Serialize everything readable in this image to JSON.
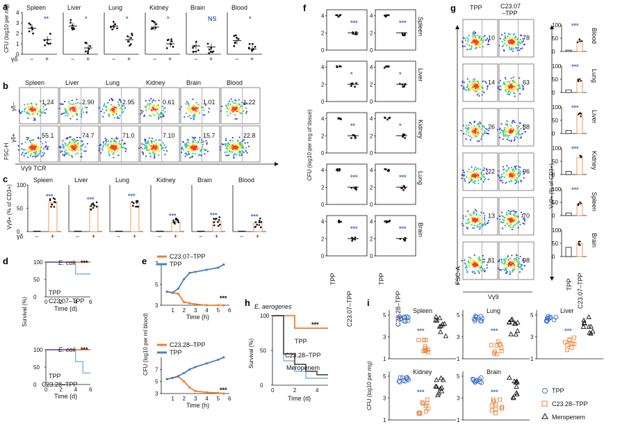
{
  "panels": {
    "a": {
      "label": "a",
      "ylabel": "CFU (log10 per mg)",
      "organs": [
        "Spleen",
        "Liver",
        "Lung",
        "Kidney",
        "Brain",
        "Blood"
      ],
      "gd_label": "γδ",
      "signs": [
        "−",
        "+"
      ],
      "stats": [
        "**",
        "*",
        "*",
        "*",
        "NS",
        "*"
      ],
      "ylim": [
        0,
        4
      ],
      "yticks": [
        "0",
        "1",
        "2",
        "3",
        "4"
      ],
      "chart_data": {
        "type": "scatter",
        "categories": [
          "Spleen",
          "Liver",
          "Lung",
          "Kidney",
          "Brain",
          "Blood"
        ],
        "series": [
          {
            "name": "−",
            "values": [
              2.5,
              2.7,
              2.7,
              2.6,
              0.8,
              1.3
            ]
          },
          {
            "name": "+",
            "values": [
              1.4,
              0.6,
              1.4,
              1.0,
              0.7,
              0.5
            ]
          }
        ]
      }
    },
    "b": {
      "label": "b",
      "organs": [
        "Spleen",
        "Liver",
        "Lung",
        "Kidney",
        "Brain",
        "Blood"
      ],
      "row1_label": "γδ−",
      "row2_label": "γδ+",
      "ylabel": "FSC-H",
      "xlabel": "Vγ9 TCR",
      "row1_values": [
        "1.24",
        "2.90",
        "2.95",
        "0.61",
        "1.01",
        "1.22"
      ],
      "row2_values": [
        "55.1",
        "74.7",
        "71.0",
        "7.10",
        "15.7",
        "22.8"
      ]
    },
    "c": {
      "label": "c",
      "ylabel": "Vγ9+ (% of CD3+)",
      "organs": [
        "Spleen",
        "Liver",
        "Lung",
        "Kidney",
        "Brain",
        "Blood"
      ],
      "gd_label": "γδ",
      "signs": [
        "−",
        "+"
      ],
      "stat": "***",
      "yticks": [
        "0",
        "50",
        "100"
      ],
      "chart_data": {
        "type": "bar",
        "categories": [
          "Spleen",
          "Liver",
          "Lung",
          "Kidney",
          "Brain",
          "Blood"
        ],
        "series": [
          {
            "name": "−",
            "values": [
              1,
              1,
              1,
              1,
              1,
              1
            ]
          },
          {
            "name": "+",
            "values": [
              62,
              55,
              63,
              20,
              22,
              19
            ]
          }
        ],
        "ylim": [
          0,
          100
        ]
      }
    },
    "d": {
      "label": "d",
      "ylabel": "Survival (%)",
      "xlabel": "Time (d)",
      "yticks": [
        "0",
        "50",
        "100"
      ],
      "xticks": [
        "0",
        "2",
        "4",
        "6"
      ],
      "top": {
        "title": "E. coli",
        "legend": [
          "TPP",
          "C23.07–TPP"
        ],
        "stat": "***"
      },
      "bottom": {
        "title": "E. coli",
        "legend": [
          "TPP",
          "C23.28–TPP"
        ],
        "stat": "***"
      }
    },
    "e": {
      "label": "e",
      "ylabel": "CFU (log10 per ml blood)",
      "xlabel": "Time (h)",
      "yticks": [
        "3",
        "5",
        "7"
      ],
      "xticks": [
        "1",
        "2",
        "3",
        "4",
        "5",
        "6"
      ],
      "top": {
        "legend": [
          "C23.07–TPP",
          "TPP"
        ],
        "stat": "***",
        "chart_data": {
          "type": "line",
          "x": [
            0.5,
            1,
            1.5,
            2,
            2.5,
            3,
            4,
            5,
            5.5
          ],
          "series": [
            {
              "name": "C23.07–TPP",
              "values": [
                4.3,
                4.2,
                4.1,
                3.3,
                3.2,
                3.1,
                3.0,
                3.0,
                3.0
              ]
            },
            {
              "name": "TPP",
              "values": [
                4.3,
                4.2,
                4.6,
                5.5,
                6.1,
                6.2,
                6.4,
                6.6,
                6.9
              ]
            }
          ]
        }
      },
      "bottom": {
        "legend": [
          "C23.28–TPP",
          "TPP"
        ],
        "stat": "***",
        "chart_data": {
          "type": "line",
          "x": [
            0.5,
            1,
            1.5,
            2,
            2.5,
            3,
            4,
            5,
            5.5
          ],
          "series": [
            {
              "name": "C23.28–TPP",
              "values": [
                5.4,
                5.6,
                5.8,
                5.0,
                4.0,
                3.4,
                3.2,
                3.1,
                3.0
              ]
            },
            {
              "name": "TPP",
              "values": [
                5.4,
                5.6,
                5.9,
                6.4,
                7.0,
                7.4,
                8.0,
                8.6,
                9.0
              ]
            }
          ]
        }
      }
    },
    "f": {
      "label": "f",
      "ylabel": "CFU (log10 per mg of tissue)",
      "organs": [
        "Spleen",
        "Liver",
        "Kidney",
        "Lung",
        "Brain"
      ],
      "yticks": [
        "0",
        "2",
        "4"
      ],
      "stats_left": [
        "***",
        "*",
        "**",
        "***",
        "***"
      ],
      "stats_right": [
        "***",
        "*",
        "*",
        "***",
        "***"
      ],
      "xlabels_left": [
        "TPP",
        "C23.07–TPP"
      ],
      "xlabels_right": [
        "TPP",
        "C23.28–TPP"
      ]
    },
    "g": {
      "label": "g",
      "col_labels": [
        "TPP",
        "C23.07–TPP"
      ],
      "xlabel": "Vγ9",
      "ylabel": "FSC-A",
      "left_values": [
        "10",
        "14",
        "26",
        "22",
        "13",
        "81"
      ],
      "right_values": [
        "78",
        "63",
        "88",
        "96",
        "70",
        "98"
      ],
      "bar_ylabel": "Vγ9+ (% of CD3+)",
      "organs": [
        "Blood",
        "Lung",
        "Liver",
        "Kidney",
        "Spleen",
        "Brain"
      ],
      "bar_xlabels": [
        "TPP",
        "C23.07–TPP"
      ],
      "stat": "***",
      "yticks": [
        "0",
        "50",
        "100"
      ]
    },
    "h": {
      "label": "h",
      "title": "E. aerogenes",
      "ylabel": "Survival (%)",
      "xlabel": "Time (d)",
      "yticks": [
        "0",
        "50",
        "100"
      ],
      "xticks": [
        "0",
        "2",
        "4"
      ],
      "legend": [
        "TPP",
        "C23.28–TPP",
        "Meropenem"
      ],
      "stat": "***"
    },
    "i": {
      "label": "i",
      "ylabel": "CFU (log10 per mg)",
      "organs": [
        "Spleen",
        "Lung",
        "Liver",
        "Kidney",
        "Brain"
      ],
      "yticks": [
        "1",
        "3",
        "5"
      ],
      "stat": "***",
      "legend": [
        "TPP",
        "C23.28–TPP",
        "Meropenem"
      ]
    }
  },
  "colors": {
    "blue": "#3a6fc4",
    "orange": "#ee7d31",
    "dark": "#111111",
    "tpp_line": "#4a7fc1",
    "purple": "#7a4fa0"
  }
}
